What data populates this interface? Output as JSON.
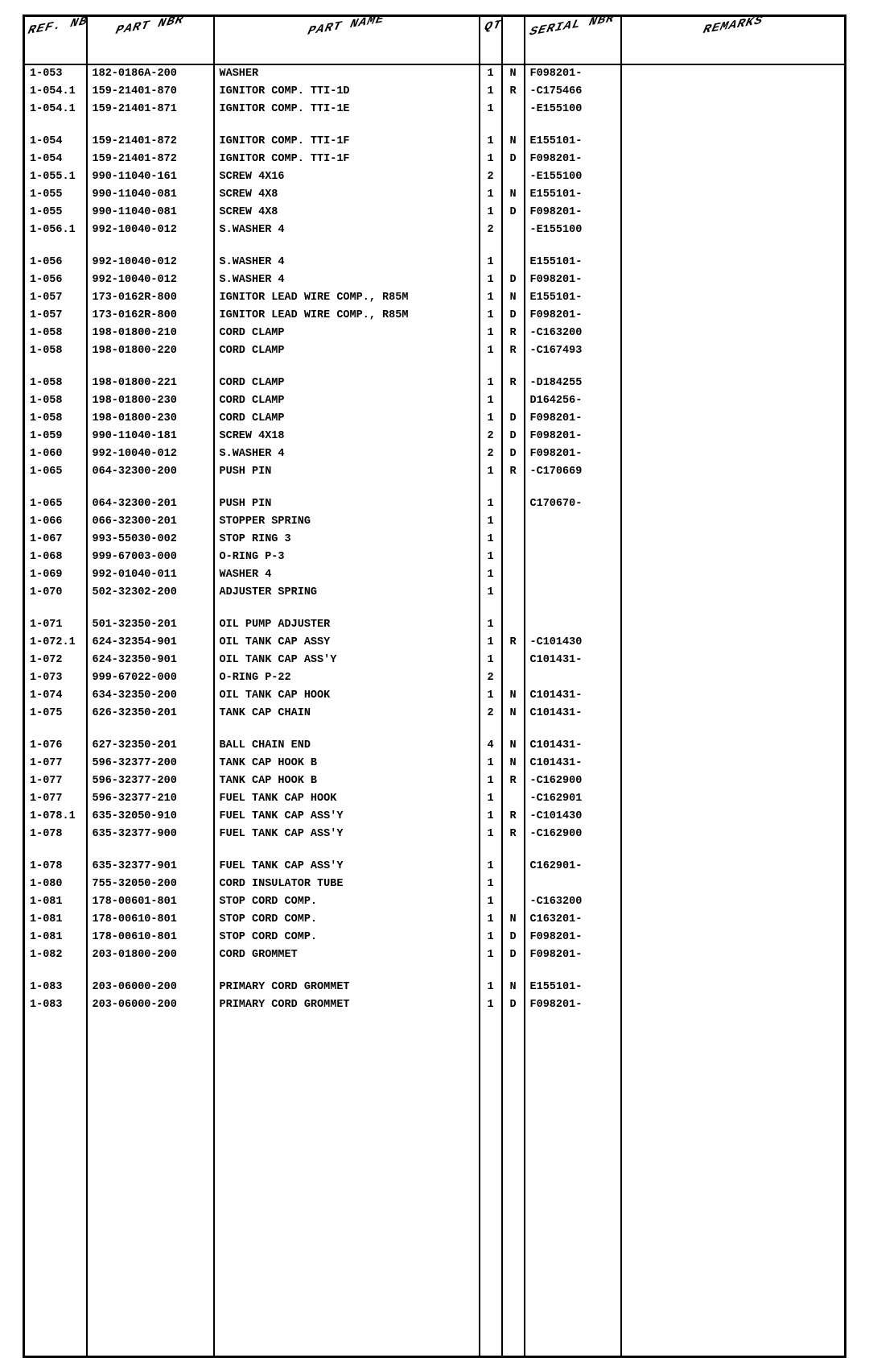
{
  "headers": {
    "ref": "REF. NBR",
    "part": "PART NBR",
    "name": "PART NAME",
    "qty": "QTY",
    "flag": "",
    "serial": "SERIAL NBR",
    "remarks": "REMARKS"
  },
  "groups": [
    [
      {
        "ref": "1-053",
        "part": "182-0186A-200",
        "name": "WASHER",
        "qty": "1",
        "flag": "N",
        "ser": "F098201-"
      },
      {
        "ref": "1-054.1",
        "part": "159-21401-870",
        "name": "IGNITOR COMP. TTI-1D",
        "qty": "1",
        "flag": "R",
        "ser": "-C175466"
      },
      {
        "ref": "1-054.1",
        "part": "159-21401-871",
        "name": "IGNITOR COMP. TTI-1E",
        "qty": "1",
        "flag": "",
        "ser": "-E155100"
      }
    ],
    [
      {
        "ref": "1-054",
        "part": "159-21401-872",
        "name": "IGNITOR COMP. TTI-1F",
        "qty": "1",
        "flag": "N",
        "ser": "E155101-"
      },
      {
        "ref": "1-054",
        "part": "159-21401-872",
        "name": "IGNITOR COMP. TTI-1F",
        "qty": "1",
        "flag": "D",
        "ser": "F098201-"
      },
      {
        "ref": "1-055.1",
        "part": "990-11040-161",
        "name": "SCREW 4X16",
        "qty": "2",
        "flag": "",
        "ser": "-E155100"
      },
      {
        "ref": "1-055",
        "part": "990-11040-081",
        "name": "SCREW 4X8",
        "qty": "1",
        "flag": "N",
        "ser": "E155101-"
      },
      {
        "ref": "1-055",
        "part": "990-11040-081",
        "name": "SCREW 4X8",
        "qty": "1",
        "flag": "D",
        "ser": "F098201-"
      },
      {
        "ref": "1-056.1",
        "part": "992-10040-012",
        "name": "S.WASHER 4",
        "qty": "2",
        "flag": "",
        "ser": "-E155100"
      }
    ],
    [
      {
        "ref": "1-056",
        "part": "992-10040-012",
        "name": "S.WASHER 4",
        "qty": "1",
        "flag": "",
        "ser": "E155101-"
      },
      {
        "ref": "1-056",
        "part": "992-10040-012",
        "name": "S.WASHER 4",
        "qty": "1",
        "flag": "D",
        "ser": "F098201-"
      },
      {
        "ref": "1-057",
        "part": "173-0162R-800",
        "name": "IGNITOR LEAD WIRE COMP., R85M",
        "qty": "1",
        "flag": "N",
        "ser": "E155101-"
      },
      {
        "ref": "1-057",
        "part": "173-0162R-800",
        "name": "IGNITOR LEAD WIRE COMP., R85M",
        "qty": "1",
        "flag": "D",
        "ser": "F098201-"
      },
      {
        "ref": "1-058",
        "part": "198-01800-210",
        "name": "CORD CLAMP",
        "qty": "1",
        "flag": "R",
        "ser": "-C163200"
      },
      {
        "ref": "1-058",
        "part": "198-01800-220",
        "name": "CORD CLAMP",
        "qty": "1",
        "flag": "R",
        "ser": "-C167493"
      }
    ],
    [
      {
        "ref": "1-058",
        "part": "198-01800-221",
        "name": "CORD CLAMP",
        "qty": "1",
        "flag": "R",
        "ser": "-D184255"
      },
      {
        "ref": "1-058",
        "part": "198-01800-230",
        "name": "CORD CLAMP",
        "qty": "1",
        "flag": "",
        "ser": "D164256-"
      },
      {
        "ref": "1-058",
        "part": "198-01800-230",
        "name": "CORD CLAMP",
        "qty": "1",
        "flag": "D",
        "ser": "F098201-"
      },
      {
        "ref": "1-059",
        "part": "990-11040-181",
        "name": "SCREW 4X18",
        "qty": "2",
        "flag": "D",
        "ser": "F098201-"
      },
      {
        "ref": "1-060",
        "part": "992-10040-012",
        "name": "S.WASHER 4",
        "qty": "2",
        "flag": "D",
        "ser": "F098201-"
      },
      {
        "ref": "1-065",
        "part": "064-32300-200",
        "name": "PUSH PIN",
        "qty": "1",
        "flag": "R",
        "ser": "-C170669"
      }
    ],
    [
      {
        "ref": "1-065",
        "part": "064-32300-201",
        "name": "PUSH PIN",
        "qty": "1",
        "flag": "",
        "ser": "C170670-"
      },
      {
        "ref": "1-066",
        "part": "066-32300-201",
        "name": "STOPPER SPRING",
        "qty": "1",
        "flag": "",
        "ser": ""
      },
      {
        "ref": "1-067",
        "part": "993-55030-002",
        "name": "STOP RING 3",
        "qty": "1",
        "flag": "",
        "ser": ""
      },
      {
        "ref": "1-068",
        "part": "999-67003-000",
        "name": "O-RING P-3",
        "qty": "1",
        "flag": "",
        "ser": ""
      },
      {
        "ref": "1-069",
        "part": "992-01040-011",
        "name": "WASHER 4",
        "qty": "1",
        "flag": "",
        "ser": ""
      },
      {
        "ref": "1-070",
        "part": "502-32302-200",
        "name": "ADJUSTER SPRING",
        "qty": "1",
        "flag": "",
        "ser": ""
      }
    ],
    [
      {
        "ref": "1-071",
        "part": "501-32350-201",
        "name": "OIL PUMP ADJUSTER",
        "qty": "1",
        "flag": "",
        "ser": ""
      },
      {
        "ref": "1-072.1",
        "part": "624-32354-901",
        "name": "OIL TANK CAP ASSY",
        "qty": "1",
        "flag": "R",
        "ser": "-C101430"
      },
      {
        "ref": "1-072",
        "part": "624-32350-901",
        "name": "OIL TANK CAP ASS'Y",
        "qty": "1",
        "flag": "",
        "ser": "C101431-"
      },
      {
        "ref": "1-073",
        "part": "999-67022-000",
        "name": "O-RING P-22",
        "qty": "2",
        "flag": "",
        "ser": ""
      },
      {
        "ref": "1-074",
        "part": "634-32350-200",
        "name": "OIL TANK CAP HOOK",
        "qty": "1",
        "flag": "N",
        "ser": "C101431-"
      },
      {
        "ref": "1-075",
        "part": "626-32350-201",
        "name": "TANK CAP CHAIN",
        "qty": "2",
        "flag": "N",
        "ser": "C101431-"
      }
    ],
    [
      {
        "ref": "1-076",
        "part": "627-32350-201",
        "name": "BALL CHAIN END",
        "qty": "4",
        "flag": "N",
        "ser": "C101431-"
      },
      {
        "ref": "1-077",
        "part": "596-32377-200",
        "name": "TANK CAP HOOK B",
        "qty": "1",
        "flag": "N",
        "ser": "C101431-"
      },
      {
        "ref": "1-077",
        "part": "596-32377-200",
        "name": "TANK CAP HOOK B",
        "qty": "1",
        "flag": "R",
        "ser": "-C162900"
      },
      {
        "ref": "1-077",
        "part": "596-32377-210",
        "name": "FUEL TANK CAP HOOK",
        "qty": "1",
        "flag": "",
        "ser": "-C162901"
      },
      {
        "ref": "1-078.1",
        "part": "635-32050-910",
        "name": "FUEL TANK CAP ASS'Y",
        "qty": "1",
        "flag": "R",
        "ser": "-C101430"
      },
      {
        "ref": "1-078",
        "part": "635-32377-900",
        "name": "FUEL TANK CAP ASS'Y",
        "qty": "1",
        "flag": "R",
        "ser": "-C162900"
      }
    ],
    [
      {
        "ref": "1-078",
        "part": "635-32377-901",
        "name": "FUEL TANK CAP ASS'Y",
        "qty": "1",
        "flag": "",
        "ser": "C162901-"
      },
      {
        "ref": "1-080",
        "part": "755-32050-200",
        "name": "CORD INSULATOR TUBE",
        "qty": "1",
        "flag": "",
        "ser": ""
      },
      {
        "ref": "1-081",
        "part": "178-00601-801",
        "name": "STOP CORD COMP.",
        "qty": "1",
        "flag": "",
        "ser": "-C163200"
      },
      {
        "ref": "1-081",
        "part": "178-00610-801",
        "name": "STOP CORD COMP.",
        "qty": "1",
        "flag": "N",
        "ser": "C163201-"
      },
      {
        "ref": "1-081",
        "part": "178-00610-801",
        "name": "STOP CORD COMP.",
        "qty": "1",
        "flag": "D",
        "ser": "F098201-"
      },
      {
        "ref": "1-082",
        "part": "203-01800-200",
        "name": "CORD GROMMET",
        "qty": "1",
        "flag": "D",
        "ser": "F098201-"
      }
    ],
    [
      {
        "ref": "1-083",
        "part": "203-06000-200",
        "name": "PRIMARY CORD GROMMET",
        "qty": "1",
        "flag": "N",
        "ser": "E155101-"
      },
      {
        "ref": "1-083",
        "part": "203-06000-200",
        "name": "PRIMARY CORD GROMMET",
        "qty": "1",
        "flag": "D",
        "ser": "F098201-"
      }
    ]
  ]
}
